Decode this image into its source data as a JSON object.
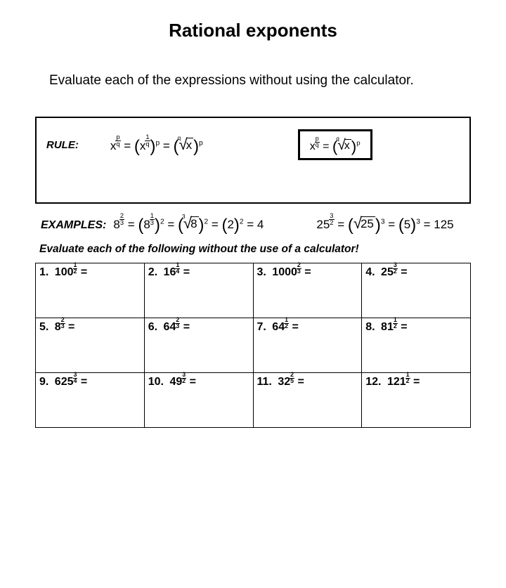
{
  "title": "Rational exponents",
  "instruction": "Evaluate each of the expressions without using the calculator.",
  "rule": {
    "label": "RULE:",
    "formula1": {
      "base": "x",
      "exp_n": "p",
      "exp_d": "q",
      "inside_base": "x",
      "inside_n": "1",
      "inside_d": "q",
      "outer_p": "p",
      "root_deg": "q",
      "root_arg": "x",
      "outer_p2": "p"
    },
    "formula2": {
      "base": "x",
      "exp_n": "p",
      "exp_d": "q",
      "root_deg": "q",
      "root_arg": "x",
      "outer_p": "p"
    }
  },
  "examples": {
    "label": "EXAMPLES:",
    "ex1": {
      "base": "8",
      "n": "2",
      "d": "3",
      "step1_base": "8",
      "step1_n": "1",
      "step1_d": "3",
      "step1_p": "2",
      "root_deg": "3",
      "root_arg": "8",
      "root_p": "2",
      "simp_base": "2",
      "simp_p": "2",
      "result": "4"
    },
    "ex2": {
      "base": "25",
      "n": "3",
      "d": "2",
      "root_arg": "25",
      "root_p": "3",
      "simp_base": "5",
      "simp_p": "3",
      "result": "125"
    }
  },
  "sub_instruction": "Evaluate each of the following without the use of a calculator!",
  "problems": [
    {
      "num": "1.",
      "base": "100",
      "n": "1",
      "d": "2"
    },
    {
      "num": "2.",
      "base": "16",
      "n": "1",
      "d": "4"
    },
    {
      "num": "3.",
      "base": "1000",
      "n": "2",
      "d": "3"
    },
    {
      "num": "4.",
      "base": "25",
      "n": "3",
      "d": "2"
    },
    {
      "num": "5.",
      "base": "8",
      "n": "2",
      "d": "3"
    },
    {
      "num": "6.",
      "base": "64",
      "n": "2",
      "d": "3"
    },
    {
      "num": "7.",
      "base": "64",
      "n": "1",
      "d": "2"
    },
    {
      "num": "8.",
      "base": "81",
      "n": "1",
      "d": "2"
    },
    {
      "num": "9.",
      "base": "625",
      "n": "3",
      "d": "4"
    },
    {
      "num": "10.",
      "base": "49",
      "n": "3",
      "d": "2"
    },
    {
      "num": "11.",
      "base": "32",
      "n": "2",
      "d": "5"
    },
    {
      "num": "12.",
      "base": "121",
      "n": "1",
      "d": "2"
    }
  ],
  "colors": {
    "text": "#000000",
    "background": "#ffffff",
    "border": "#000000"
  }
}
